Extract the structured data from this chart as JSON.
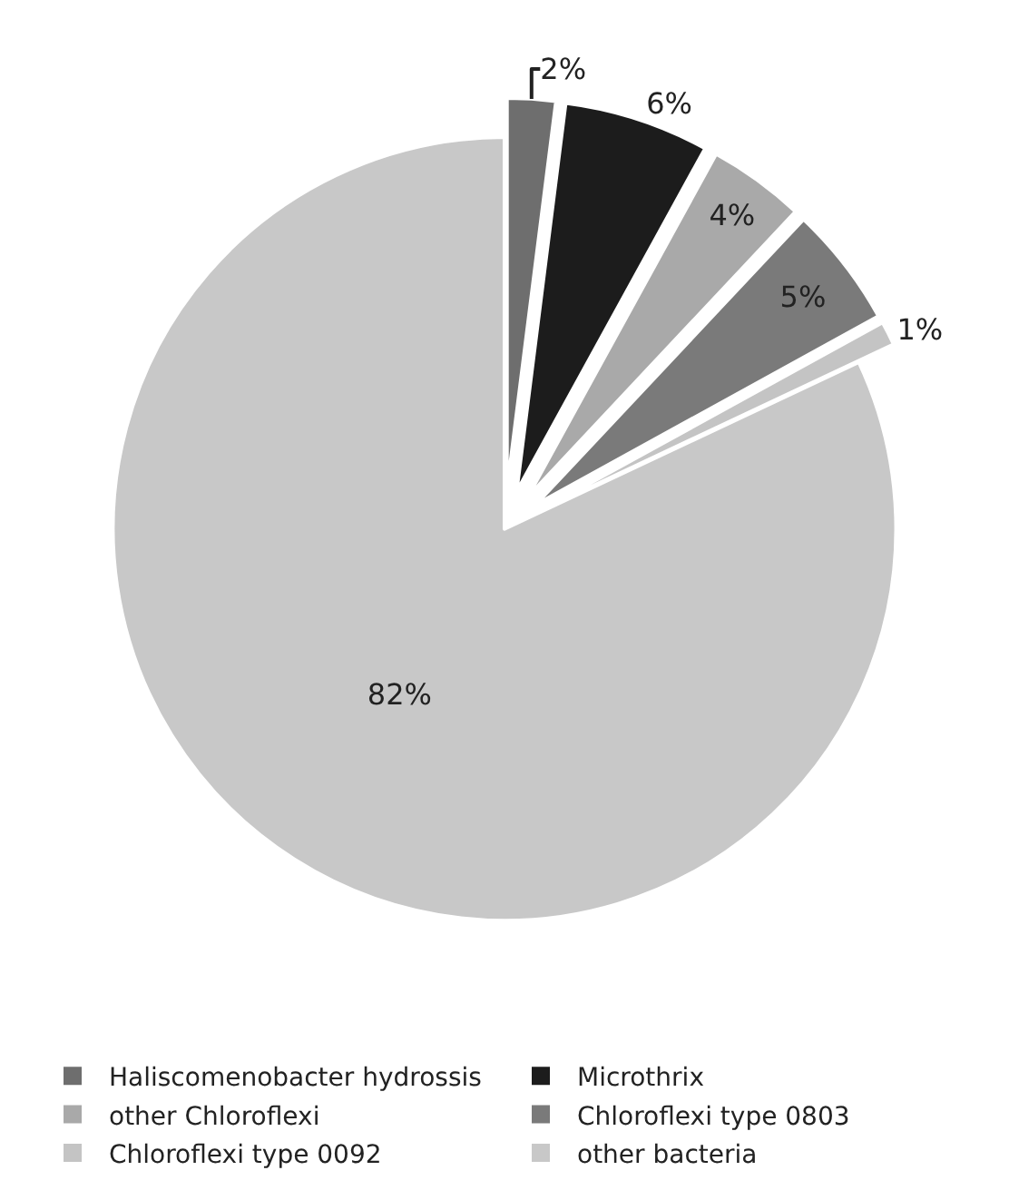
{
  "chart_data": {
    "type": "pie",
    "categories": [
      "Haliscomenobacter hydrossis",
      "Microthrix",
      "other Chloroflexi",
      "Chloroflexi type 0803",
      "Chloroflexi type 0092",
      "other bacteria"
    ],
    "values": [
      2,
      6,
      4,
      5,
      1,
      82
    ],
    "value_labels": [
      "2%",
      "6%",
      "4%",
      "5%",
      "1%",
      "82%"
    ],
    "colors": [
      "#6e6e6e",
      "#1c1c1c",
      "#a9a9a9",
      "#7a7a7a",
      "#c4c4c4",
      "#c8c8c8"
    ],
    "legend": "bottom"
  }
}
